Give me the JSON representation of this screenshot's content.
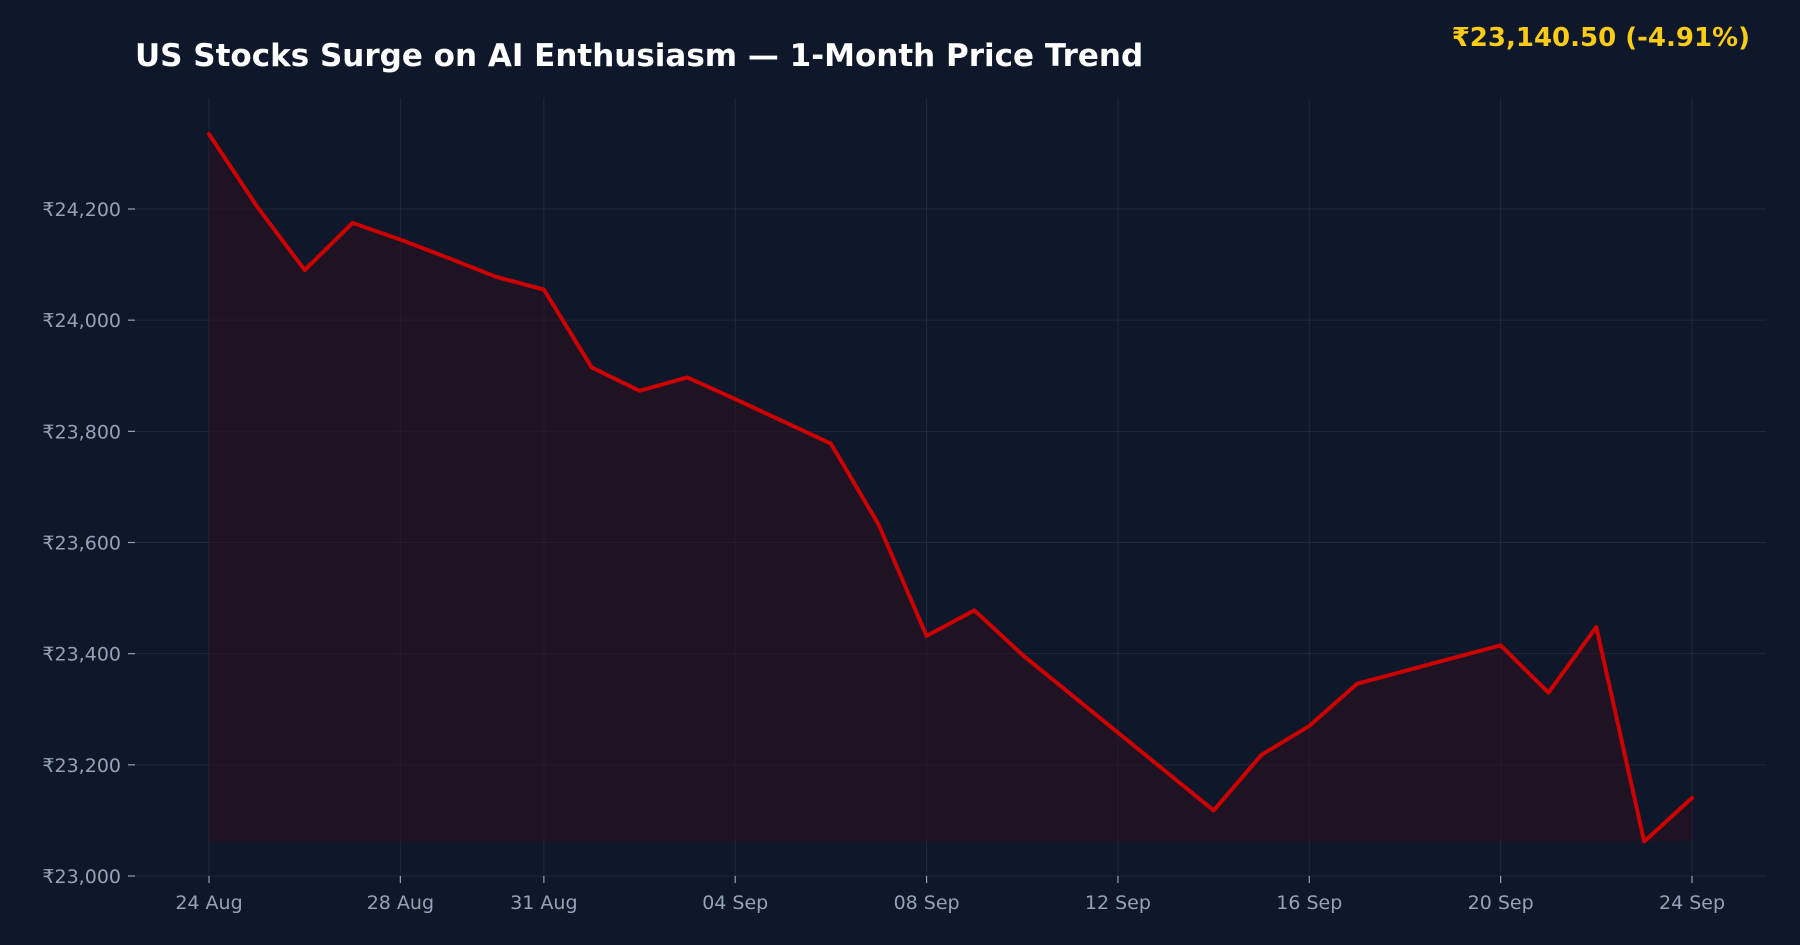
{
  "header": {
    "title": "US Stocks Surge on AI Enthusiasm — 1-Month Price Trend",
    "price_badge": "₹23,140.50  (-4.91%)"
  },
  "colors": {
    "background": "#0f172a",
    "line": "#cc0000",
    "area_fill": "#2a1020",
    "badge": "#facc15",
    "tick_text": "#94a3b8",
    "grid": "#1e293b"
  },
  "chart_data": {
    "type": "line",
    "title": "US Stocks Surge on AI Enthusiasm — 1-Month Price Trend",
    "xlabel": "",
    "ylabel": "",
    "x_range": [
      "2024-08-24",
      "2024-09-24"
    ],
    "ylim": [
      23000,
      24400
    ],
    "grid": true,
    "area_fill": true,
    "x_ticks": [
      {
        "date": "2024-08-24",
        "label": "24 Aug"
      },
      {
        "date": "2024-08-28",
        "label": "28 Aug"
      },
      {
        "date": "2024-08-31",
        "label": "31 Aug"
      },
      {
        "date": "2024-09-04",
        "label": "04 Sep"
      },
      {
        "date": "2024-09-08",
        "label": "08 Sep"
      },
      {
        "date": "2024-09-12",
        "label": "12 Sep"
      },
      {
        "date": "2024-09-16",
        "label": "16 Sep"
      },
      {
        "date": "2024-09-20",
        "label": "20 Sep"
      },
      {
        "date": "2024-09-24",
        "label": "24 Sep"
      }
    ],
    "y_ticks": [
      {
        "value": 23000,
        "label": "₹23,000"
      },
      {
        "value": 23200,
        "label": "₹23,200"
      },
      {
        "value": 23400,
        "label": "₹23,400"
      },
      {
        "value": 23600,
        "label": "₹23,600"
      },
      {
        "value": 23800,
        "label": "₹23,800"
      },
      {
        "value": 24000,
        "label": "₹24,000"
      },
      {
        "value": 24200,
        "label": "₹24,200"
      }
    ],
    "series": [
      {
        "x": [
          "2024-08-24",
          "2024-08-25",
          "2024-08-26",
          "2024-08-27",
          "2024-08-28",
          "2024-08-29",
          "2024-08-30",
          "2024-08-31",
          "2024-09-01",
          "2024-09-02",
          "2024-09-03",
          "2024-09-04",
          "2024-09-05",
          "2024-09-06",
          "2024-09-07",
          "2024-09-08",
          "2024-09-09",
          "2024-09-10",
          "2024-09-11",
          "2024-09-12",
          "2024-09-13",
          "2024-09-14",
          "2024-09-15",
          "2024-09-16",
          "2024-09-17",
          "2024-09-18",
          "2024-09-19",
          "2024-09-20",
          "2024-09-21",
          "2024-09-22",
          "2024-09-23",
          "2024-09-24"
        ],
        "values": [
          24335,
          24205,
          24090,
          24175,
          24145,
          24112,
          24078,
          24055,
          23915,
          23873,
          23897,
          23858,
          23818,
          23778,
          23632,
          23432,
          23478,
          23398,
          23328,
          23258,
          23188,
          23118,
          23218,
          23270,
          23346,
          23369,
          23392,
          23415,
          23330,
          23448,
          23062,
          23140.5
        ]
      }
    ],
    "baseline": 23062
  }
}
